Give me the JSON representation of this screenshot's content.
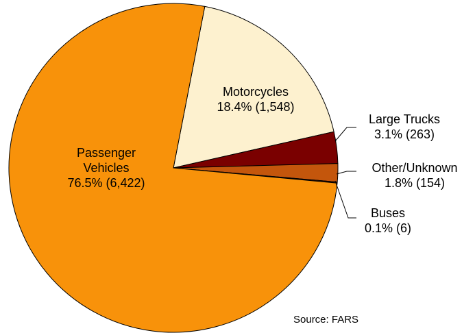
{
  "chart_data": {
    "type": "pie",
    "categories": [
      "Motorcycles",
      "Large Trucks",
      "Other/Unknown",
      "Buses",
      "Passenger Vehicles"
    ],
    "values": [
      18.4,
      3.1,
      1.8,
      0.1,
      76.5
    ],
    "value_labels": [
      "18.4% (1,548)",
      "3.1% (263)",
      "1.8% (154)",
      "0.1% (6)",
      "76.5% (6,422)"
    ],
    "colors": [
      "#fdf1cf",
      "#7a0000",
      "#c4560c",
      "#5a1a00",
      "#f8920a"
    ],
    "source": "Source: FARS"
  }
}
